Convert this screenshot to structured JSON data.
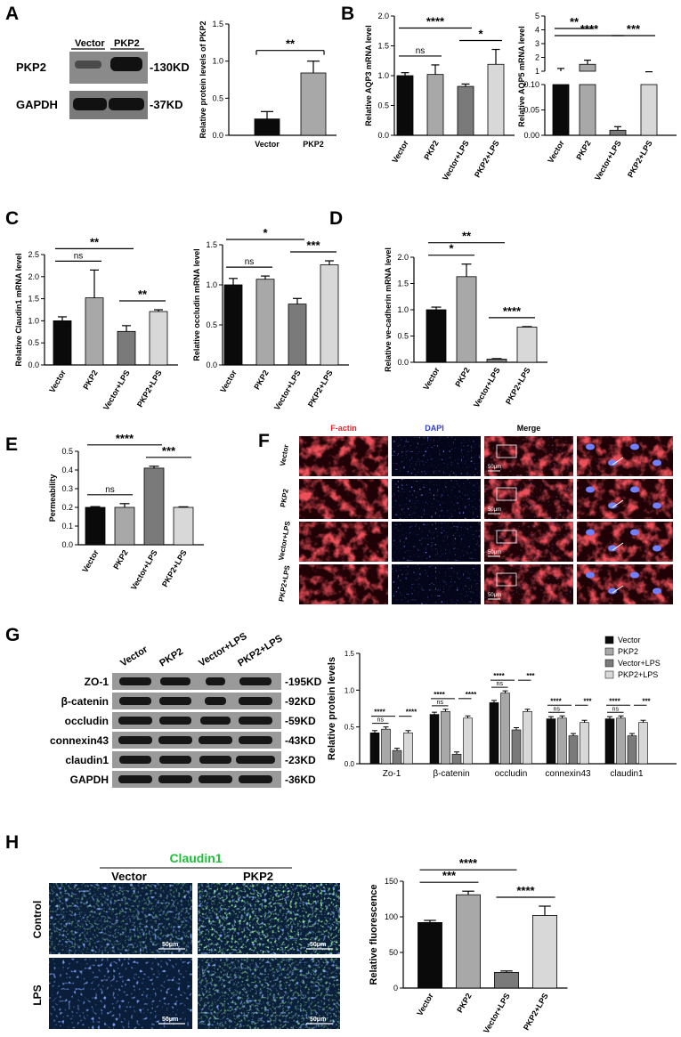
{
  "panels": {
    "A": "A",
    "B": "B",
    "C": "C",
    "D": "D",
    "E": "E",
    "F": "F",
    "G": "G",
    "H": "H"
  },
  "colors": {
    "black": "#0a0a0a",
    "dark": "#7a7a7a",
    "mid": "#a8a8a8",
    "light": "#d8d8d8"
  },
  "chart_data": [
    {
      "id": "A",
      "type": "bar",
      "categories": [
        "Vector",
        "PKP2"
      ],
      "values": [
        0.22,
        0.84
      ],
      "errors": [
        0.1,
        0.16
      ],
      "ylabel": "Relative protein levels of PKP2",
      "ylim": [
        0,
        1.5
      ],
      "yticks": [
        "0.0",
        "0.5",
        "1.0",
        "1.5"
      ],
      "sig": [
        {
          "text": "**",
          "from": 0,
          "to": 1
        }
      ]
    },
    {
      "id": "B1",
      "type": "bar",
      "categories": [
        "Vector",
        "PKP2",
        "Vector+LPS",
        "PKP2+LPS"
      ],
      "values": [
        1.0,
        1.02,
        0.82,
        1.19
      ],
      "errors": [
        0.05,
        0.16,
        0.04,
        0.25
      ],
      "ylabel": "Relative AQP3 mRNA level",
      "ylim": [
        0,
        2.0
      ],
      "yticks": [
        "0.0",
        "0.5",
        "1.0",
        "1.5",
        "2.0"
      ],
      "sig": [
        {
          "text": "ns",
          "from": 0,
          "to": 1
        },
        {
          "text": "****",
          "from": 0,
          "to": 2
        },
        {
          "text": "*",
          "from": 2,
          "to": 3
        }
      ]
    },
    {
      "id": "B2",
      "type": "bar",
      "axis": "broken",
      "categories": [
        "Vector",
        "PKP2",
        "Vector+LPS",
        "PKP2+LPS"
      ],
      "values": [
        1.0,
        1.5,
        0.01,
        0.7
      ],
      "errors": [
        0.2,
        0.3,
        0.007,
        0.1
      ],
      "ylabel": "Relative AQP5 mRNA level",
      "yticks_top": [
        "1",
        "2",
        "3",
        "4",
        "5"
      ],
      "yticks_bottom": [
        "0.00",
        "0.05",
        "0.10"
      ],
      "sig": [
        {
          "text": "**",
          "from": 0,
          "to": 1
        },
        {
          "text": "****",
          "from": 0,
          "to": 2
        },
        {
          "text": "***",
          "from": 2,
          "to": 3
        }
      ]
    },
    {
      "id": "C1",
      "type": "bar",
      "categories": [
        "Vector",
        "PKP2",
        "Vector+LPS",
        "PKP2+LPS"
      ],
      "values": [
        1.0,
        1.52,
        0.76,
        1.21
      ],
      "errors": [
        0.09,
        0.63,
        0.13,
        0.04
      ],
      "ylabel": "Relative Claudin1 mRNA level",
      "ylim": [
        0,
        2.5
      ],
      "yticks": [
        "0.0",
        "0.5",
        "1.0",
        "1.5",
        "2.0",
        "2.5"
      ],
      "sig": [
        {
          "text": "ns",
          "from": 0,
          "to": 1
        },
        {
          "text": "**",
          "from": 0,
          "to": 2
        },
        {
          "text": "**",
          "from": 2,
          "to": 3
        }
      ]
    },
    {
      "id": "C2",
      "type": "bar",
      "categories": [
        "Vector",
        "PKP2",
        "Vector+LPS",
        "PKP2+LPS"
      ],
      "values": [
        1.0,
        1.07,
        0.76,
        1.25
      ],
      "errors": [
        0.08,
        0.04,
        0.07,
        0.05
      ],
      "ylabel": "Relative occludin mRNA level",
      "ylim": [
        0,
        1.5
      ],
      "yticks": [
        "0.0",
        "0.5",
        "1.0",
        "1.5"
      ],
      "sig": [
        {
          "text": "ns",
          "from": 0,
          "to": 1
        },
        {
          "text": "*",
          "from": 0,
          "to": 2
        },
        {
          "text": "***",
          "from": 2,
          "to": 3
        }
      ]
    },
    {
      "id": "D",
      "type": "bar",
      "categories": [
        "Vector",
        "PKP2",
        "Vector+LPS",
        "PKP2+LPS"
      ],
      "values": [
        1.0,
        1.63,
        0.06,
        0.67
      ],
      "errors": [
        0.05,
        0.24,
        0.01,
        0.01
      ],
      "ylabel": "Relative ve-cadherin mRNA level",
      "ylim": [
        0,
        2.0
      ],
      "yticks": [
        "0.0",
        "0.5",
        "1.0",
        "1.5",
        "2.0"
      ],
      "sig": [
        {
          "text": "*",
          "from": 0,
          "to": 1
        },
        {
          "text": "**",
          "from": 0,
          "to": 2
        },
        {
          "text": "****",
          "from": 2,
          "to": 3
        }
      ]
    },
    {
      "id": "E",
      "type": "bar",
      "categories": [
        "Vector",
        "PKP2",
        "Vector+LPS",
        "PKP2+LPS"
      ],
      "values": [
        0.2,
        0.2,
        0.41,
        0.2
      ],
      "errors": [
        0.004,
        0.02,
        0.01,
        0.003
      ],
      "ylabel": "Permeability",
      "ylim": [
        0,
        0.5
      ],
      "yticks": [
        "0.0",
        "0.1",
        "0.2",
        "0.3",
        "0.4",
        "0.5"
      ],
      "sig": [
        {
          "text": "ns",
          "from": 0,
          "to": 1
        },
        {
          "text": "****",
          "from": 0,
          "to": 2
        },
        {
          "text": "***",
          "from": 2,
          "to": 3
        }
      ]
    },
    {
      "id": "G",
      "type": "bar",
      "grouped": true,
      "categories": [
        "Zo-1",
        "β-catenin",
        "occludin",
        "connexin43",
        "claudin1"
      ],
      "series": [
        {
          "name": "Vector",
          "values": [
            0.42,
            0.67,
            0.83,
            0.61,
            0.61
          ]
        },
        {
          "name": "PKP2",
          "values": [
            0.47,
            0.71,
            0.96,
            0.62,
            0.62
          ]
        },
        {
          "name": "Vector+LPS",
          "values": [
            0.18,
            0.13,
            0.46,
            0.38,
            0.38
          ]
        },
        {
          "name": "PKP2+LPS",
          "values": [
            0.42,
            0.62,
            0.71,
            0.56,
            0.56
          ]
        }
      ],
      "error": 0.03,
      "ylabel": "Relative protein levels",
      "ylim": [
        0,
        1.5
      ],
      "yticks": [
        "0.0",
        "0.5",
        "1.0",
        "1.5"
      ],
      "sig_labels": [
        [
          "ns",
          "****",
          "****"
        ],
        [
          "ns",
          "****",
          "****"
        ],
        [
          "ns",
          "****",
          "***"
        ],
        [
          "ns",
          "****",
          "***"
        ],
        [
          "ns",
          "****",
          "***"
        ]
      ],
      "legend": "top-right"
    },
    {
      "id": "H",
      "type": "bar",
      "categories": [
        "Vector",
        "PKP2",
        "Vector+LPS",
        "PKP2+LPS"
      ],
      "values": [
        92,
        131,
        22,
        102
      ],
      "errors": [
        3,
        5,
        2,
        13
      ],
      "ylabel": "Relative fluorescence",
      "ylim": [
        0,
        150
      ],
      "yticks": [
        "0",
        "50",
        "100",
        "150"
      ],
      "sig": [
        {
          "text": "***",
          "from": 0,
          "to": 1
        },
        {
          "text": "****",
          "from": 0,
          "to": 2
        },
        {
          "text": "****",
          "from": 2,
          "to": 3
        }
      ]
    }
  ],
  "blotA": {
    "lanes": [
      "Vector",
      "PKP2"
    ],
    "rows": [
      {
        "name": "PKP2",
        "kd": "-130KD"
      },
      {
        "name": "GAPDH",
        "kd": "-37KD"
      }
    ]
  },
  "blotG": {
    "lanes": [
      "Vector",
      "PKP2",
      "Vector+LPS",
      "PKP2+LPS"
    ],
    "rows": [
      {
        "name": "ZO-1",
        "kd": "-195KD"
      },
      {
        "name": "β-catenin",
        "kd": "-92KD"
      },
      {
        "name": "occludin",
        "kd": "-59KD"
      },
      {
        "name": "connexin43",
        "kd": "-43KD"
      },
      {
        "name": "claudin1",
        "kd": "-23KD"
      },
      {
        "name": "GAPDH",
        "kd": "-36KD"
      }
    ]
  },
  "panelF": {
    "columns": [
      "F-actin",
      "DAPI",
      "Merge"
    ],
    "rows": [
      "Vector",
      "PKP2",
      "Vector+LPS",
      "PKP2+LPS"
    ],
    "scale": "50μm"
  },
  "panelH": {
    "title": "Claudin1",
    "columns": [
      "Vector",
      "PKP2"
    ],
    "rows": [
      "Control",
      "LPS"
    ],
    "scale": "50μm"
  }
}
